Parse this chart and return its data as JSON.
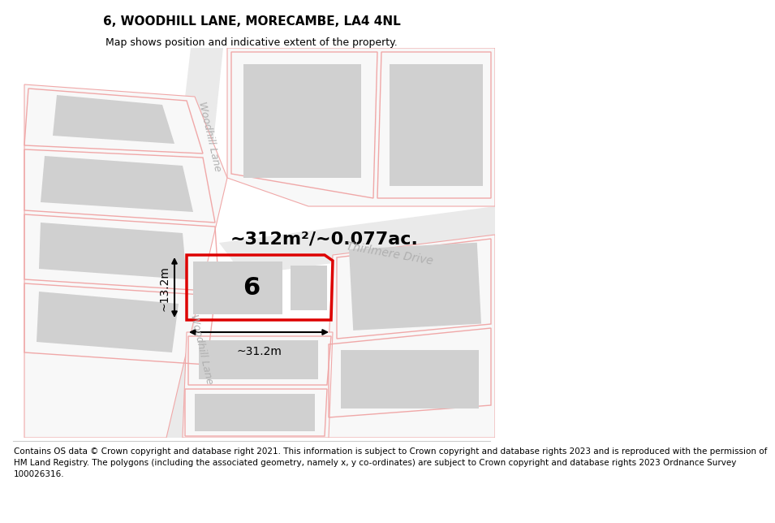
{
  "title": "6, WOODHILL LANE, MORECAMBE, LA4 4NL",
  "subtitle": "Map shows position and indicative extent of the property.",
  "footnote_line1": "Contains OS data © Crown copyright and database right 2021. This information is subject to Crown copyright and database rights 2023 and is reproduced with the permission of",
  "footnote_line2": "HM Land Registry. The polygons (including the associated geometry, namely x, y co-ordinates) are subject to Crown copyright and database rights 2023 Ordnance Survey",
  "footnote_line3": "100026316.",
  "area_label": "~312m²/~0.077ac.",
  "width_label": "~31.2m",
  "height_label": "~13.2m",
  "road_label_wh1": "Woodhill Lane",
  "road_label_wh2": "Woodhill Lane",
  "road_label_td": "Thirlmere Drive",
  "property_number": "6",
  "bg_color": "#ffffff",
  "plot_red": "#dd0000",
  "building_gray": "#d0d0d0",
  "boundary_pink": "#f0a8a8",
  "road_text_color": "#b0b0b0",
  "title_fontsize": 11,
  "subtitle_fontsize": 9,
  "footnote_fontsize": 7.5,
  "area_fontsize": 16,
  "dim_fontsize": 10,
  "num_fontsize": 22
}
